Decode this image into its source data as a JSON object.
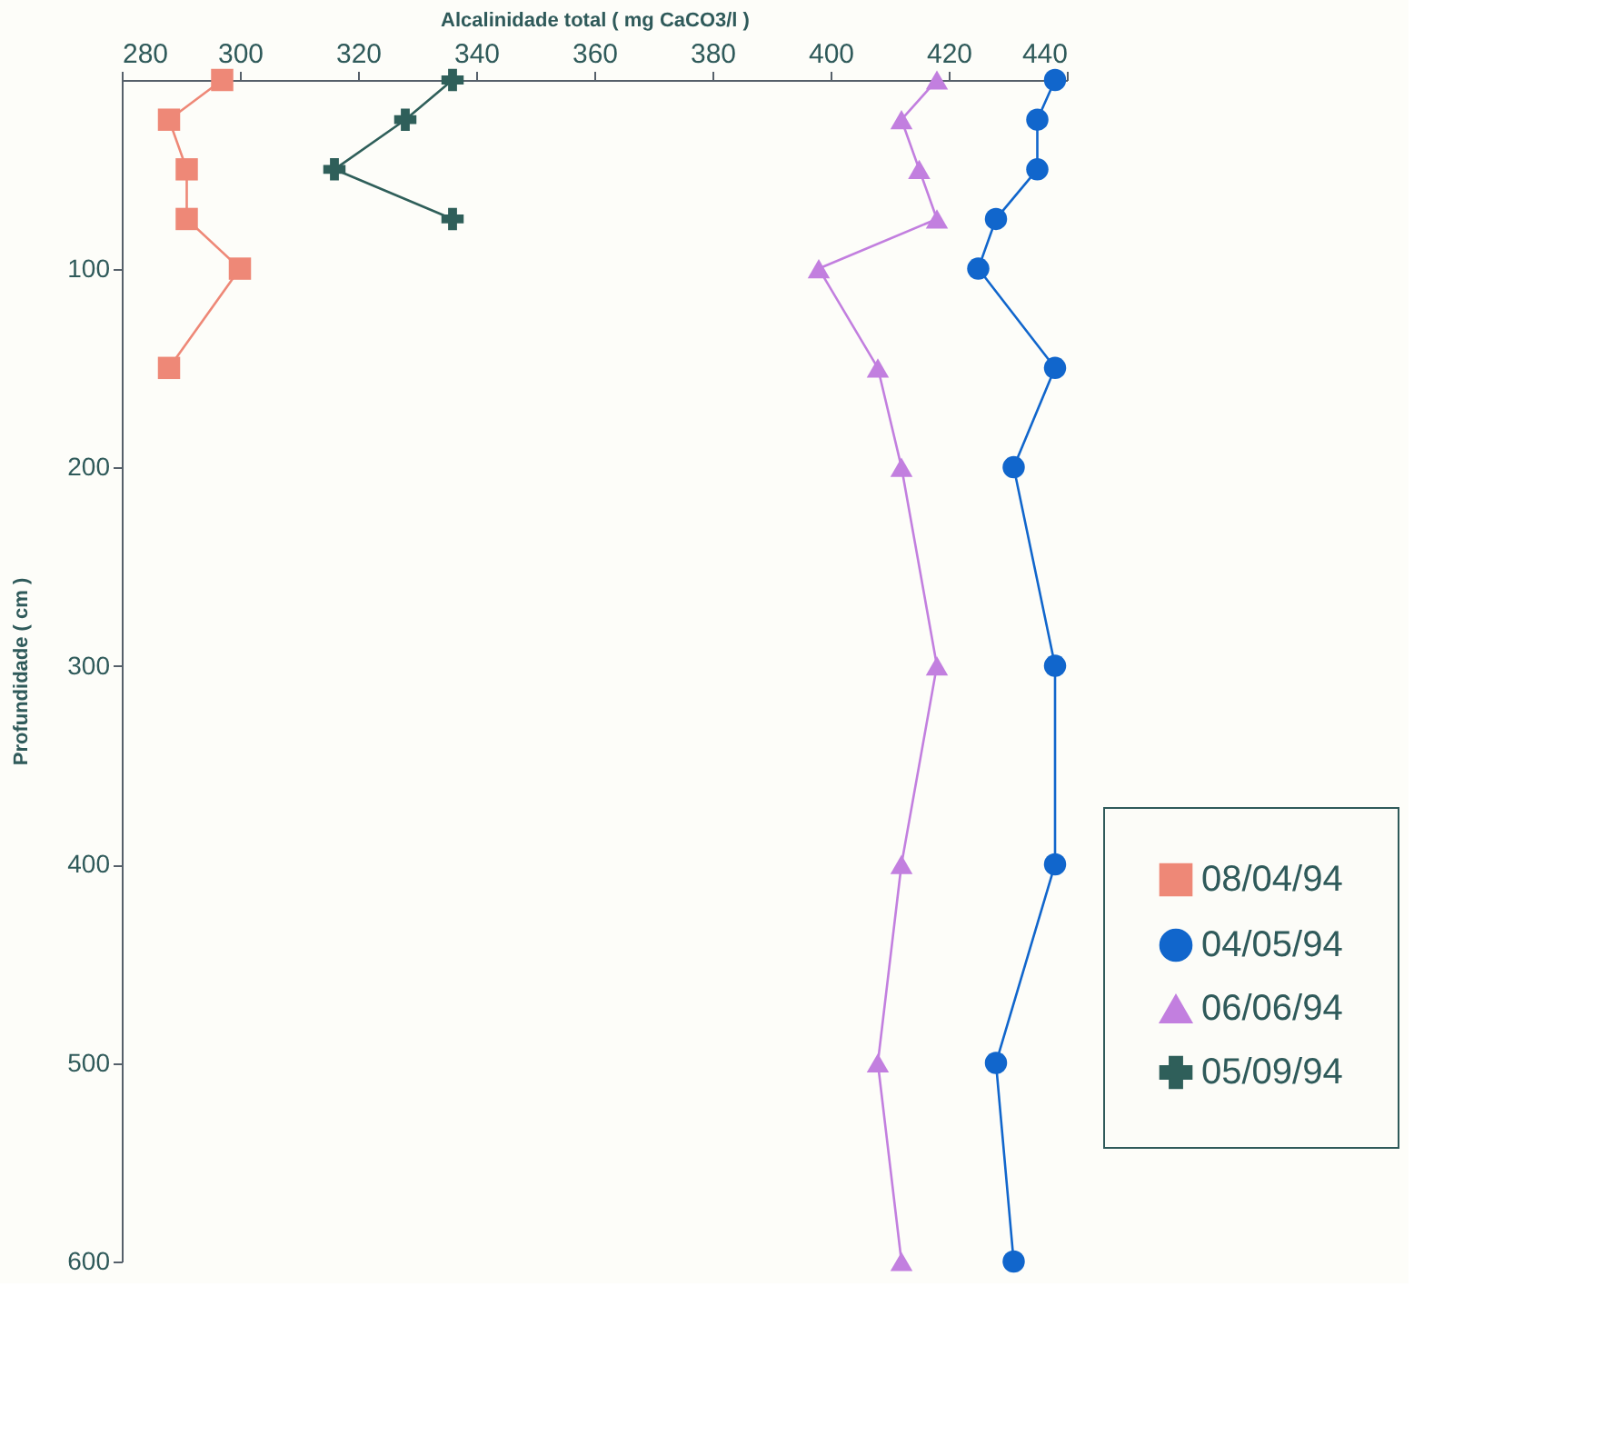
{
  "chart_data": {
    "type": "line",
    "orientation": "horizontal",
    "xlabel": "Alcalinidade total ( mg CaCO3/l )",
    "ylabel": "Profundidade ( cm )",
    "xlim": [
      280,
      440
    ],
    "xticks": [
      280,
      300,
      320,
      340,
      360,
      380,
      400,
      420,
      440
    ],
    "ylim": [
      600,
      5
    ],
    "yticks": [
      100,
      200,
      300,
      400,
      500,
      600
    ],
    "grid": false,
    "legend": "bottom right",
    "line_style": "solid",
    "series": [
      {
        "name": "08/04/94",
        "color": "#ee8877",
        "marker": "square",
        "x": [
          5,
          25,
          50,
          75,
          100,
          150
        ],
        "values": [
          297,
          288,
          291,
          291,
          300,
          288
        ]
      },
      {
        "name": "04/05/94",
        "color": "#1166cc",
        "marker": "circle",
        "x": [
          5,
          25,
          50,
          75,
          100,
          150,
          200,
          300,
          400,
          500,
          600
        ],
        "values": [
          438,
          435,
          435,
          428,
          425,
          438,
          431,
          438,
          438,
          428,
          431
        ]
      },
      {
        "name": "06/06/94",
        "color": "#c27fdf",
        "marker": "triangle",
        "x": [
          5,
          25,
          50,
          75,
          100,
          150,
          200,
          300,
          400,
          500,
          600
        ],
        "values": [
          418,
          412,
          415,
          418,
          398,
          408,
          412,
          418,
          412,
          408,
          412
        ]
      },
      {
        "name": "05/09/94",
        "color": "#2f5f5a",
        "marker": "cross",
        "x": [
          5,
          25,
          50,
          75
        ],
        "values": [
          336,
          328,
          316,
          336
        ]
      }
    ]
  }
}
